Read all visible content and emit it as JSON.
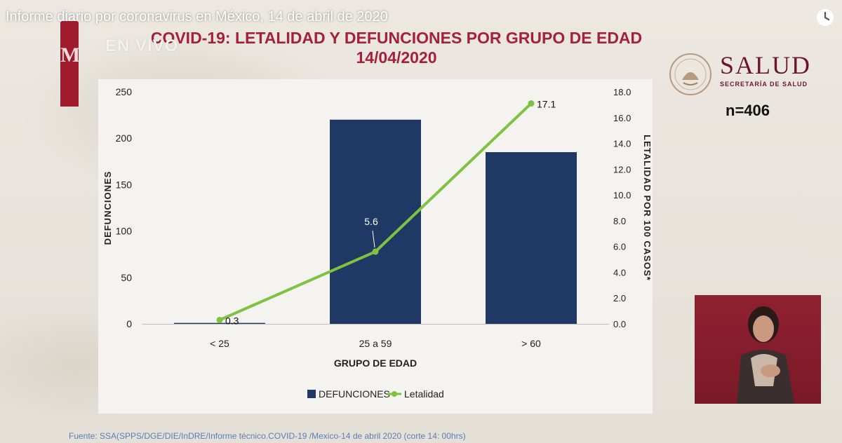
{
  "video": {
    "title": "Informe diario por coronavirus en México, 14 de abril de 2020",
    "live_label": "EN VIVO",
    "logo_letter": "M"
  },
  "header": {
    "title_line1": "COVID-19: LETALIDAD Y DEFUNCIONES POR GRUPO DE EDAD",
    "title_line2": "14/04/2020"
  },
  "brand": {
    "name": "SALUD",
    "subtitle": "SECRETARÍA DE SALUD",
    "color": "#6b1727"
  },
  "sample": {
    "label": "n=406"
  },
  "source": "Fuente: SSA(SPPS/DGE/DIE/InDRE/Informe técnico.COVID-19 /Mexico-14 de abril 2020 (corte 14: 00hrs)",
  "chart_data": {
    "type": "bar",
    "title": "COVID-19: LETALIDAD Y DEFUNCIONES POR GRUPO DE EDAD",
    "xlabel": "GRUPO DE EDAD",
    "ylabel": "DEFUNCIONES",
    "y2label": "LETALIDAD POR 100 CASOS*",
    "categories": [
      "< 25",
      "25 a 59",
      "> 60"
    ],
    "ylim": [
      0,
      250
    ],
    "y_ticks": [
      "0",
      "50",
      "100",
      "150",
      "200",
      "250"
    ],
    "y2lim": [
      0,
      18
    ],
    "y2_ticks": [
      "0.0",
      "2.0",
      "4.0",
      "6.0",
      "8.0",
      "10.0",
      "12.0",
      "14.0",
      "16.0",
      "18.0"
    ],
    "grid": false,
    "legend_position": "bottom",
    "series": [
      {
        "name": "DEFUNCIONES",
        "type": "bar",
        "axis": "left",
        "color": "#1f3864",
        "values": [
          1,
          220,
          185
        ]
      },
      {
        "name": "Letalidad",
        "type": "line",
        "axis": "right",
        "color": "#7ec242",
        "values": [
          0.3,
          5.6,
          17.1
        ],
        "labels": [
          "0.3",
          "5.6",
          "17.1"
        ]
      }
    ]
  },
  "colors": {
    "title": "#a3213a",
    "bar": "#1f3864",
    "line": "#7ec242",
    "source_text": "#5a7fb0"
  }
}
